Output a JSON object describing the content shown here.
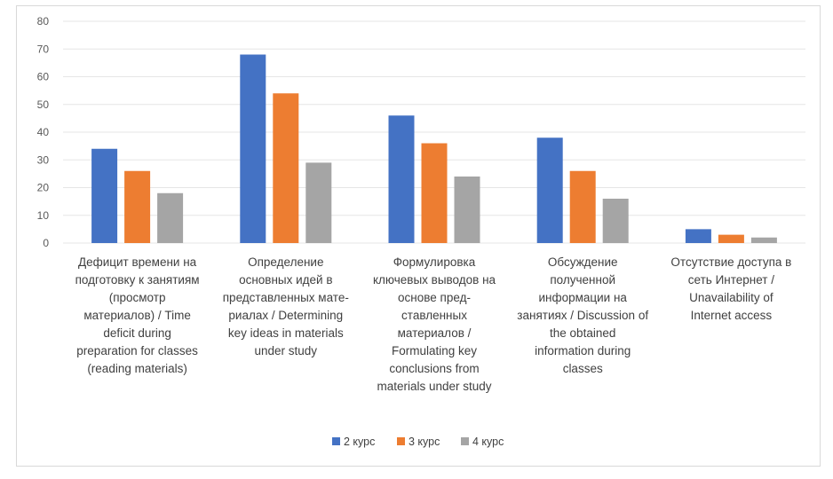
{
  "chart_data": {
    "type": "bar",
    "title": "",
    "xlabel": "",
    "ylabel": "",
    "ylim": [
      0,
      80
    ],
    "yticks": [
      0,
      10,
      20,
      30,
      40,
      50,
      60,
      70,
      80
    ],
    "grid": true,
    "legend_position": "bottom",
    "categories": [
      [
        "Дефицит времени на",
        "подготовку к занятиям",
        "(просмотр",
        "материалов) / Time",
        "deficit during",
        "preparation for classes",
        "(reading materials)"
      ],
      [
        "Определение",
        "основных идей в",
        "представленных мате-",
        "риалах / Determining",
        "key ideas in materials",
        "under study"
      ],
      [
        "Формулировка",
        "ключевых выводов на",
        "основе пред-",
        "ставленных",
        "материалов /",
        "Formulating key",
        "conclusions from",
        "materials under study"
      ],
      [
        "Обсуждение",
        "полученной",
        "информации на",
        "занятиях / Discussion of",
        "the obtained",
        "information during",
        "classes"
      ],
      [
        "Отсутствие доступа в",
        "сеть Интернет /",
        "Unavailability of",
        "Internet access"
      ]
    ],
    "series": [
      {
        "name": "2 курс",
        "color": "#4472c4",
        "values": [
          34,
          68,
          46,
          38,
          5
        ]
      },
      {
        "name": "3 курс",
        "color": "#ed7d31",
        "values": [
          26,
          54,
          36,
          26,
          3
        ]
      },
      {
        "name": "4 курс",
        "color": "#a5a5a5",
        "values": [
          18,
          29,
          24,
          16,
          2
        ]
      }
    ]
  }
}
